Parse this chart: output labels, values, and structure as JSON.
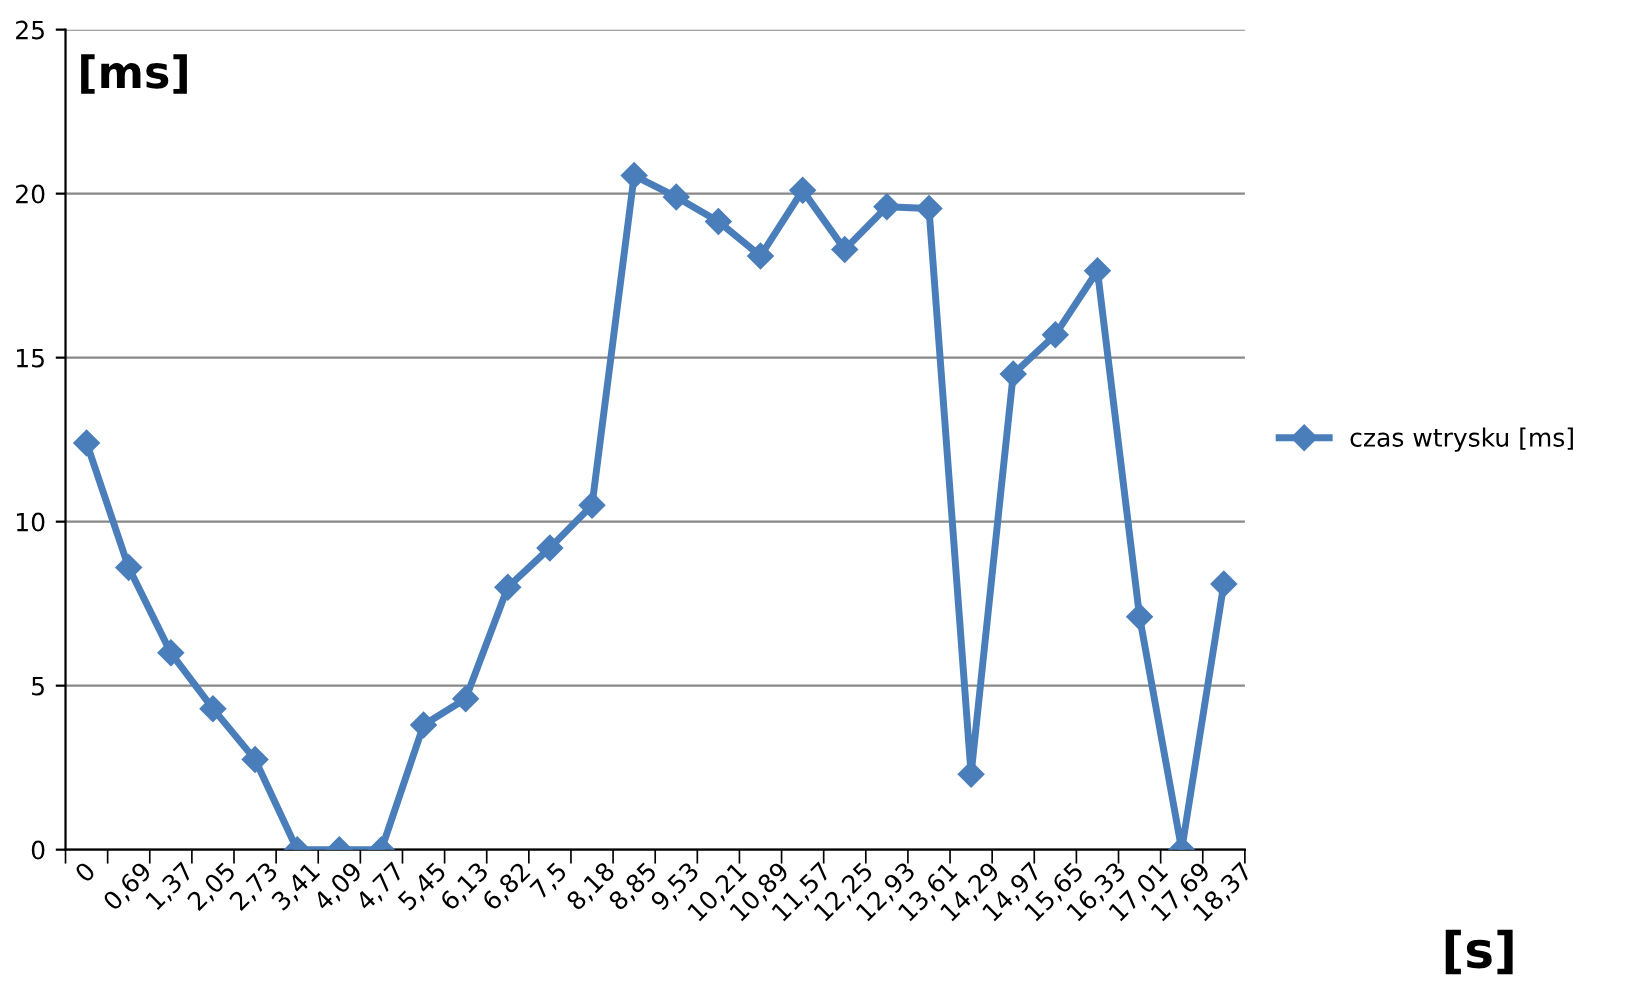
{
  "chart_data": {
    "type": "line",
    "xlabel": "[s]",
    "ylabel": "[ms]",
    "categories": [
      "0",
      "0,69",
      "1,37",
      "2,05",
      "2,73",
      "3,41",
      "4,09",
      "4,77",
      "5,45",
      "6,13",
      "6,82",
      "7,5",
      "8,18",
      "8,85",
      "9,53",
      "10,21",
      "10,89",
      "11,57",
      "12,25",
      "12,93",
      "13,61",
      "14,29",
      "14,97",
      "15,65",
      "16,33",
      "17,01",
      "17,69",
      "18,37"
    ],
    "series": [
      {
        "name": "czas wtrysku [ms]",
        "color": "#4a7ebb",
        "values": [
          12.4,
          8.6,
          6.0,
          4.3,
          2.75,
          0,
          0,
          0,
          3.8,
          4.6,
          8.0,
          9.2,
          10.5,
          20.55,
          19.9,
          19.15,
          18.1,
          20.1,
          18.3,
          19.6,
          19.55,
          2.3,
          14.5,
          15.7,
          17.65,
          7.1,
          0,
          8.1
        ]
      }
    ],
    "ylim": [
      0,
      25
    ],
    "yticks": [
      0,
      5,
      10,
      15,
      20,
      25
    ],
    "grid": "y",
    "legend": "right",
    "marker": "diamond",
    "line_style": "solid"
  }
}
